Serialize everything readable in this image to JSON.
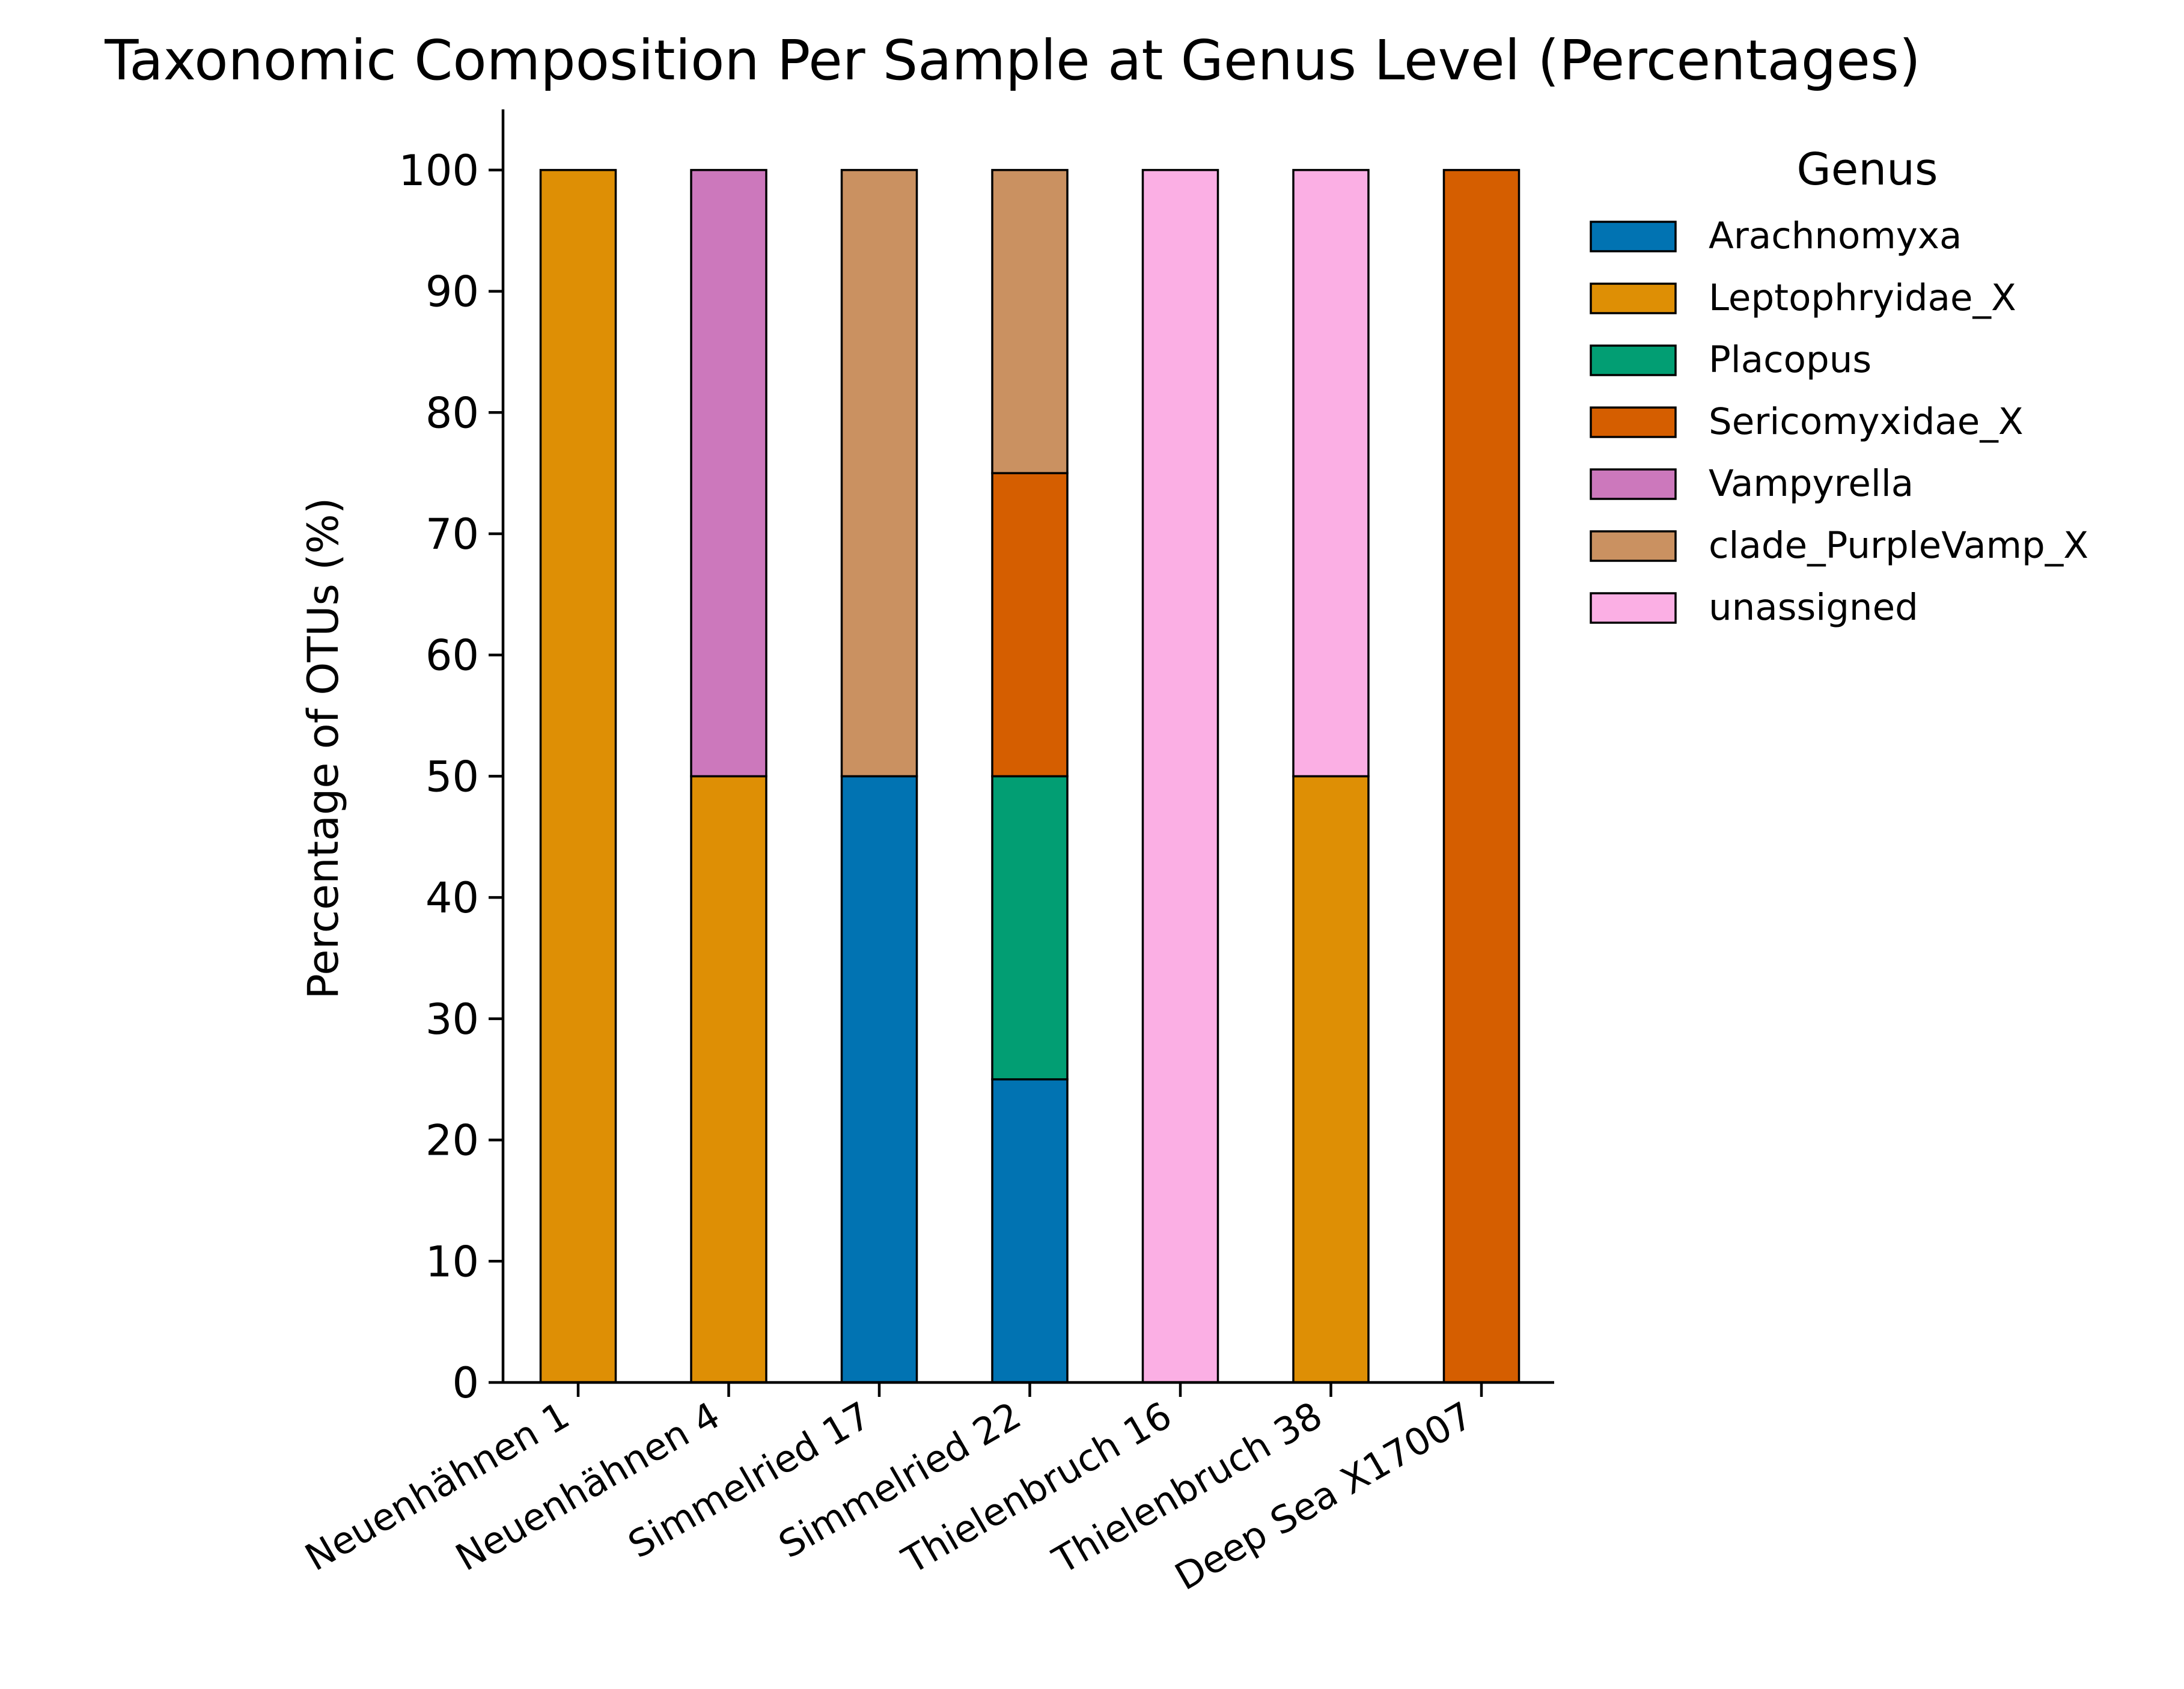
{
  "chart_data": {
    "type": "bar",
    "stacked": true,
    "title": "Taxonomic Composition Per Sample at Genus Level (Percentages)",
    "xlabel": "",
    "ylabel": "Percentage of OTUs (%)",
    "ylim": [
      0,
      105
    ],
    "yticks": [
      0,
      10,
      20,
      30,
      40,
      50,
      60,
      70,
      80,
      90,
      100
    ],
    "grid": false,
    "legend": {
      "title": "Genus",
      "placement": "outside-right"
    },
    "categories": [
      "Neuenhähnen 1",
      "Neuenhähnen 4",
      "Simmelried 17",
      "Simmelried 22",
      "Thielenbruch 16",
      "Thielenbruch 38",
      "Deep Sea X17007"
    ],
    "series": [
      {
        "name": "Arachnomyxa",
        "color": "#0173b2",
        "values": [
          0,
          0,
          50,
          25,
          0,
          0,
          0
        ]
      },
      {
        "name": "Leptophryidae_X",
        "color": "#de8f05",
        "values": [
          100,
          50,
          0,
          0,
          0,
          50,
          0
        ]
      },
      {
        "name": "Placopus",
        "color": "#029e73",
        "values": [
          0,
          0,
          0,
          25,
          0,
          0,
          0
        ]
      },
      {
        "name": "Sericomyxidae_X",
        "color": "#d55e00",
        "values": [
          0,
          0,
          0,
          25,
          0,
          0,
          100
        ]
      },
      {
        "name": "Vampyrella",
        "color": "#cc78bc",
        "values": [
          0,
          50,
          0,
          0,
          0,
          0,
          0
        ]
      },
      {
        "name": "clade_PurpleVamp_X",
        "color": "#ca9161",
        "values": [
          0,
          0,
          50,
          25,
          0,
          0,
          0
        ]
      },
      {
        "name": "unassigned",
        "color": "#fbafe4",
        "values": [
          0,
          0,
          0,
          0,
          100,
          50,
          0
        ]
      }
    ]
  }
}
